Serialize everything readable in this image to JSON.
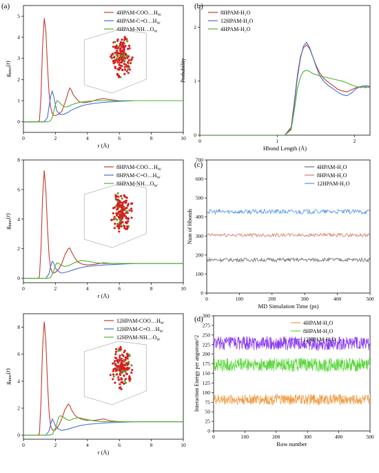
{
  "colors": {
    "red": "#c0392b",
    "blue": "#3f6fd1",
    "green": "#4caf2a",
    "gray": "#6d6d6d",
    "salmon": "#d7756b",
    "lightblue": "#4a90e2",
    "orange": "#f0a04b",
    "brightgreen": "#58d63a",
    "violet": "#8a3cf0"
  },
  "chart_data": [
    {
      "panel": "(a)",
      "type": "line",
      "ylabel_main": "g",
      "ylabel_sub": "inter",
      "ylabel_tail": "(r)",
      "xlabel": "r (Å)",
      "xlim": [
        0,
        10
      ],
      "ylim": [
        -0.5,
        5.5
      ],
      "xticks": [
        0,
        2,
        4,
        6,
        8,
        10
      ],
      "yticks": [
        0,
        1,
        2,
        3,
        4,
        5
      ],
      "legend": [
        {
          "pre": "4HPAM-COO…H",
          "sub": "W",
          "color": "red"
        },
        {
          "pre": "4HPAM-C=O…H",
          "sub": "W",
          "color": "blue"
        },
        {
          "pre": "4HPAM-NH…O",
          "sub": "W",
          "color": "green"
        }
      ],
      "series": [
        {
          "color": "red",
          "x": [
            0,
            0.9,
            1.0,
            1.1,
            1.2,
            1.3,
            1.4,
            1.5,
            1.6,
            1.7,
            1.8,
            1.9,
            2.0,
            2.2,
            2.4,
            2.6,
            2.8,
            2.9,
            3.0,
            3.1,
            3.3,
            3.5,
            3.8,
            4.2,
            4.6,
            5.0,
            5.4,
            6,
            7,
            8,
            9,
            10
          ],
          "y": [
            0,
            0,
            0.05,
            1.2,
            3.6,
            4.9,
            4.3,
            2.7,
            1.4,
            0.7,
            0.4,
            0.3,
            0.3,
            0.35,
            0.5,
            0.9,
            1.4,
            1.6,
            1.5,
            1.3,
            1.1,
            0.95,
            0.9,
            0.95,
            1.05,
            1.1,
            1.05,
            1.0,
            1.0,
            1.0,
            1.0,
            1.0
          ]
        },
        {
          "color": "blue",
          "x": [
            0,
            1.3,
            1.5,
            1.6,
            1.7,
            1.8,
            1.9,
            2.0,
            2.1,
            2.3,
            2.5,
            2.8,
            3.0,
            3.3,
            3.6,
            4,
            4.5,
            5,
            6,
            7,
            8,
            9,
            10
          ],
          "y": [
            0,
            0,
            0.2,
            0.7,
            1.2,
            1.45,
            1.2,
            0.8,
            0.5,
            0.35,
            0.35,
            0.45,
            0.55,
            0.65,
            0.75,
            0.82,
            0.88,
            0.92,
            0.97,
            1.0,
            1.0,
            1.0,
            1.0
          ]
        },
        {
          "color": "green",
          "x": [
            0,
            1.5,
            1.7,
            1.8,
            1.9,
            2.0,
            2.1,
            2.2,
            2.4,
            2.6,
            2.8,
            3.0,
            3.3,
            3.6,
            4,
            4.5,
            5,
            6,
            7,
            8,
            9,
            10
          ],
          "y": [
            0,
            0,
            0.05,
            0.2,
            0.5,
            0.8,
            1.0,
            0.95,
            0.8,
            0.7,
            0.72,
            0.8,
            0.88,
            0.93,
            0.97,
            1.0,
            1.0,
            1.0,
            1.0,
            1.0,
            1.0,
            1.0
          ]
        }
      ]
    },
    {
      "panel": "(b)",
      "type": "line",
      "xlabel": "Hbond Length (Å)",
      "ylabel": "Probability",
      "xlim": [
        0,
        2.2
      ],
      "ylim": [
        0,
        2.4
      ],
      "xticks": [
        0,
        1,
        2
      ],
      "yticks": [
        0,
        1,
        2
      ],
      "legend": [
        {
          "pre": "8HPAM-H₂O",
          "sub": "",
          "color": "red"
        },
        {
          "pre": "12HPAM-H₂O",
          "sub": "",
          "color": "blue"
        },
        {
          "pre": "4HPAM-H₂O",
          "sub": "",
          "color": "green"
        }
      ],
      "series": [
        {
          "color": "red",
          "x": [
            0,
            1.1,
            1.18,
            1.22,
            1.26,
            1.3,
            1.34,
            1.38,
            1.42,
            1.46,
            1.5,
            1.55,
            1.6,
            1.66,
            1.72,
            1.78,
            1.84,
            1.9,
            1.96,
            2.02,
            2.08,
            2.14,
            2.2
          ],
          "y": [
            0,
            0,
            0.15,
            0.6,
            1.1,
            1.45,
            1.62,
            1.67,
            1.6,
            1.45,
            1.3,
            1.15,
            1.05,
            0.98,
            0.92,
            0.85,
            0.82,
            0.8,
            0.84,
            0.88,
            0.9,
            0.88,
            0.9
          ]
        },
        {
          "color": "blue",
          "x": [
            0,
            1.1,
            1.18,
            1.22,
            1.26,
            1.3,
            1.34,
            1.38,
            1.42,
            1.46,
            1.5,
            1.55,
            1.6,
            1.66,
            1.72,
            1.78,
            1.84,
            1.9,
            1.96,
            2.02,
            2.08,
            2.14,
            2.2
          ],
          "y": [
            0,
            0,
            0.12,
            0.55,
            1.05,
            1.42,
            1.65,
            1.72,
            1.62,
            1.45,
            1.28,
            1.1,
            1.0,
            0.92,
            0.86,
            0.8,
            0.75,
            0.73,
            0.78,
            0.86,
            0.9,
            0.92,
            0.9
          ]
        },
        {
          "color": "green",
          "x": [
            0,
            1.1,
            1.18,
            1.22,
            1.26,
            1.3,
            1.34,
            1.38,
            1.42,
            1.46,
            1.5,
            1.55,
            1.6,
            1.66,
            1.72,
            1.78,
            1.84,
            1.9,
            1.96,
            2.02,
            2.08,
            2.14,
            2.2
          ],
          "y": [
            0,
            0,
            0.1,
            0.45,
            0.85,
            1.08,
            1.18,
            1.2,
            1.18,
            1.14,
            1.12,
            1.1,
            1.08,
            1.06,
            1.04,
            1.02,
            1.0,
            0.97,
            0.93,
            0.9,
            0.88,
            0.9,
            0.88
          ]
        }
      ]
    },
    {
      "panel": "(c)",
      "type": "line",
      "xlabel": "MD Simulation Time (ps)",
      "ylabel": "Num of Hbonds",
      "xlim": [
        0,
        500
      ],
      "ylim": [
        0,
        700
      ],
      "xticks": [
        0,
        100,
        200,
        300,
        400,
        500
      ],
      "yticks": [
        0,
        100,
        200,
        300,
        400,
        500,
        600,
        700
      ],
      "legend": [
        {
          "pre": "4HPAM-H₂O",
          "sub": "",
          "color": "gray"
        },
        {
          "pre": "8HPAM-H₂O",
          "sub": "",
          "color": "salmon"
        },
        {
          "pre": "12HPAM-H₂O",
          "sub": "",
          "color": "lightblue"
        }
      ],
      "series": [
        {
          "color": "gray",
          "mean": 175,
          "noise": 10,
          "n": 250
        },
        {
          "color": "salmon",
          "mean": 305,
          "noise": 9,
          "n": 250
        },
        {
          "color": "lightblue",
          "mean": 428,
          "noise": 12,
          "n": 250
        }
      ]
    },
    {
      "panel": "(d)",
      "type": "line",
      "xlabel": "Row number",
      "ylabel": "Interaction Energy per angstrom^2",
      "xlim": [
        0,
        500
      ],
      "ylim": [
        0,
        300
      ],
      "xticks": [
        0,
        100,
        200,
        300,
        400,
        500
      ],
      "yticks": [
        0,
        25,
        50,
        75,
        100,
        125,
        150,
        175,
        200,
        225,
        250,
        275,
        300
      ],
      "legend": [
        {
          "pre": "4HPAM-H₂O",
          "sub": "",
          "color": "orange"
        },
        {
          "pre": "8HPAM-H₂O",
          "sub": "",
          "color": "brightgreen"
        },
        {
          "pre": "12HPAM-H₂O",
          "sub": "",
          "color": "violet"
        }
      ],
      "series": [
        {
          "color": "orange",
          "mean": 82,
          "noise": 14,
          "n": 500
        },
        {
          "color": "brightgreen",
          "mean": 172,
          "noise": 18,
          "n": 500
        },
        {
          "color": "violet",
          "mean": 228,
          "noise": 18,
          "n": 500
        }
      ]
    },
    {
      "panel": "",
      "type": "line",
      "ylabel_main": "g",
      "ylabel_sub": "inter",
      "ylabel_tail": "(r)",
      "xlabel": "r (Å)",
      "xlim": [
        0,
        10
      ],
      "ylim": [
        -0.3,
        8
      ],
      "xticks": [
        0,
        2,
        4,
        6,
        8,
        10
      ],
      "yticks": [
        0,
        2,
        4,
        6,
        8
      ],
      "legend": [
        {
          "pre": "8HPAM-COO…H",
          "sub": "W",
          "color": "red"
        },
        {
          "pre": "8HPAM-C=O…H",
          "sub": "W",
          "color": "blue"
        },
        {
          "pre": "8HPAM-NH…O",
          "sub": "W",
          "color": "green"
        }
      ],
      "series": [
        {
          "color": "red",
          "x": [
            0,
            0.9,
            1.0,
            1.1,
            1.2,
            1.3,
            1.4,
            1.5,
            1.6,
            1.7,
            1.8,
            1.9,
            2.0,
            2.2,
            2.4,
            2.6,
            2.8,
            2.9,
            3.0,
            3.2,
            3.4,
            3.7,
            4.0,
            4.5,
            5.0,
            5.5,
            6,
            7,
            8,
            9,
            10
          ],
          "y": [
            0,
            0,
            0.1,
            2.0,
            5.5,
            7.3,
            6.0,
            3.5,
            1.6,
            0.7,
            0.4,
            0.35,
            0.4,
            0.6,
            1.0,
            1.6,
            2.0,
            2.05,
            1.8,
            1.4,
            1.1,
            0.95,
            0.9,
            0.95,
            1.05,
            1.0,
            1.0,
            1.0,
            1.0,
            1.0,
            1.0
          ]
        },
        {
          "color": "blue",
          "x": [
            0,
            1.4,
            1.6,
            1.7,
            1.8,
            1.9,
            2.0,
            2.2,
            2.4,
            2.8,
            3.2,
            3.6,
            4,
            4.5,
            5,
            6,
            7,
            8,
            9,
            10
          ],
          "y": [
            0,
            0,
            0.3,
            0.8,
            1.15,
            1.0,
            0.7,
            0.45,
            0.35,
            0.45,
            0.6,
            0.72,
            0.8,
            0.85,
            0.9,
            0.95,
            1.0,
            1.0,
            1.0,
            1.0
          ]
        },
        {
          "color": "green",
          "x": [
            0,
            1.5,
            1.7,
            1.9,
            2.0,
            2.1,
            2.2,
            2.4,
            2.6,
            2.8,
            3.0,
            3.3,
            3.6,
            4,
            4.5,
            5,
            6,
            7,
            8,
            9,
            10
          ],
          "y": [
            0,
            0,
            0.05,
            0.5,
            0.85,
            1.05,
            1.0,
            0.85,
            0.8,
            0.85,
            0.95,
            1.1,
            1.2,
            1.15,
            1.05,
            1.0,
            1.0,
            1.0,
            1.0,
            1.0,
            1.0
          ]
        }
      ]
    },
    {
      "panel": "",
      "type": "line",
      "ylabel_main": "g",
      "ylabel_sub": "inter",
      "ylabel_tail": "(r)",
      "xlabel": "r (Å)",
      "xlim": [
        0,
        10
      ],
      "ylim": [
        -0.3,
        9
      ],
      "xticks": [
        0,
        2,
        4,
        6,
        8,
        10
      ],
      "yticks": [
        0,
        2,
        4,
        6,
        8
      ],
      "legend": [
        {
          "pre": "12HPAM-COO…H",
          "sub": "W",
          "color": "red"
        },
        {
          "pre": "12HPAM-C=O…H",
          "sub": "W",
          "color": "blue"
        },
        {
          "pre": "12HPAM-NH…O",
          "sub": "W",
          "color": "green"
        }
      ],
      "series": [
        {
          "color": "red",
          "x": [
            0,
            0.9,
            1.0,
            1.1,
            1.2,
            1.3,
            1.4,
            1.5,
            1.6,
            1.7,
            1.8,
            1.9,
            2.0,
            2.2,
            2.4,
            2.6,
            2.8,
            2.9,
            3.0,
            3.2,
            3.4,
            3.7,
            4.0,
            4.5,
            5.0,
            5.5,
            6,
            7,
            8,
            9,
            10
          ],
          "y": [
            0,
            0,
            0.1,
            2.5,
            6.5,
            8.4,
            7.0,
            4.0,
            1.8,
            0.7,
            0.4,
            0.35,
            0.4,
            0.7,
            1.2,
            1.9,
            2.3,
            2.2,
            1.9,
            1.5,
            1.3,
            1.15,
            1.1,
            1.1,
            1.2,
            1.05,
            1.0,
            1.0,
            1.0,
            1.0,
            1.0
          ]
        },
        {
          "color": "blue",
          "x": [
            0,
            1.4,
            1.6,
            1.7,
            1.8,
            1.9,
            2.0,
            2.2,
            2.4,
            2.8,
            3.2,
            3.6,
            4,
            4.5,
            5,
            6,
            7,
            8,
            9,
            10
          ],
          "y": [
            0,
            0,
            0.3,
            0.8,
            1.2,
            1.0,
            0.7,
            0.45,
            0.35,
            0.45,
            0.6,
            0.72,
            0.8,
            0.85,
            0.9,
            0.95,
            1.0,
            1.0,
            1.0,
            1.0
          ]
        },
        {
          "color": "green",
          "x": [
            0,
            1.6,
            1.8,
            2.0,
            2.1,
            2.2,
            2.3,
            2.5,
            2.7,
            2.9,
            3.1,
            3.4,
            3.7,
            4,
            4.5,
            5,
            6,
            7,
            8,
            9,
            10
          ],
          "y": [
            0,
            0,
            0.05,
            0.5,
            0.9,
            1.3,
            1.45,
            1.35,
            1.15,
            1.1,
            1.2,
            1.3,
            1.25,
            1.15,
            1.05,
            1.0,
            1.0,
            1.0,
            1.0,
            1.0,
            1.0
          ]
        }
      ]
    }
  ]
}
